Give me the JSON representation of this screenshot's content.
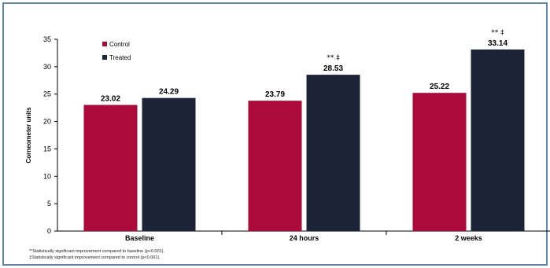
{
  "chart_data": {
    "type": "bar",
    "categories": [
      "Baseline",
      "24 hours",
      "2 weeks"
    ],
    "series": [
      {
        "name": "Control",
        "values": [
          23.02,
          23.79,
          25.22
        ],
        "color": "#ab0a3a"
      },
      {
        "name": "Treated",
        "values": [
          24.29,
          28.53,
          33.14
        ],
        "color": "#1c2537"
      }
    ],
    "ylabel": "Corneometer units",
    "ylim": [
      0,
      35
    ],
    "yticks": [
      0,
      5,
      10,
      15,
      20,
      25,
      30,
      35
    ],
    "annotations": [
      {
        "category": "24 hours",
        "series": "Treated",
        "text": "** ‡"
      },
      {
        "category": "2 weeks",
        "series": "Treated",
        "text": "** ‡"
      }
    ],
    "legend_position": "top-left",
    "grid": false
  },
  "footnotes": [
    "**Statistically significant improvement compared to baseline (p<0.001).",
    "‡Statistically significant improvement compared to control (p<0.001)."
  ]
}
